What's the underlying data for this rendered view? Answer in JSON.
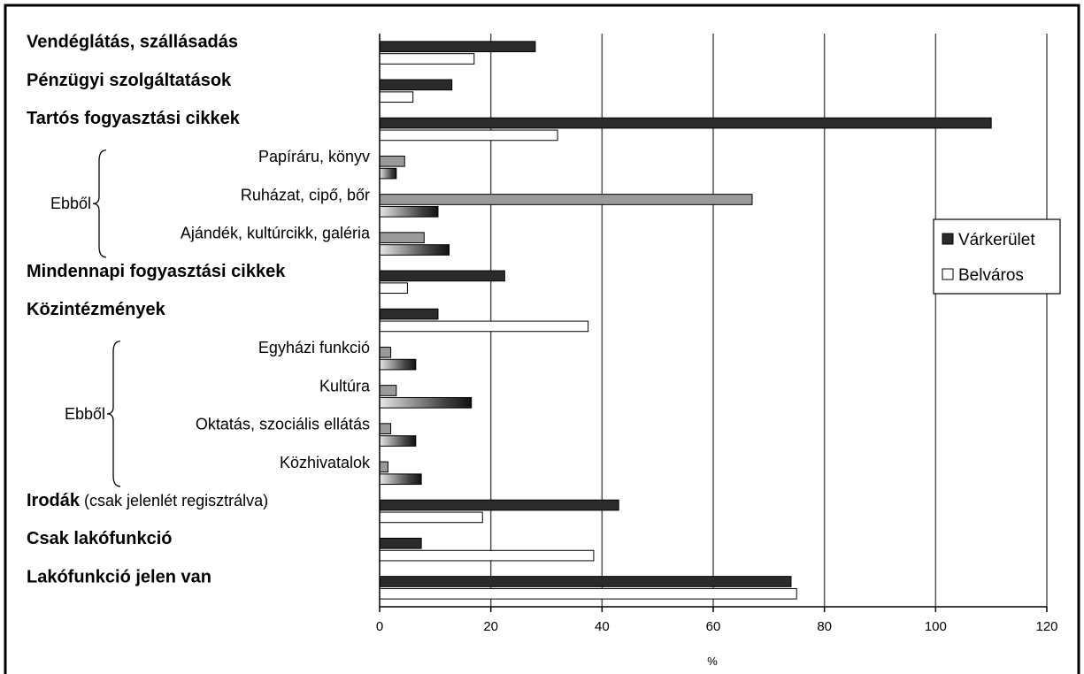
{
  "chart_data": {
    "type": "bar",
    "orientation": "horizontal",
    "xlabel": "%",
    "xlim": [
      0,
      120
    ],
    "xticks": [
      0,
      20,
      40,
      60,
      80,
      100,
      120
    ],
    "grid": "vertical",
    "legend_position": "right",
    "legend": [
      "Várkerület",
      "Belváros"
    ],
    "group_labels": [
      "Ebből",
      "Ebből"
    ],
    "categories": [
      {
        "label": "Vendéglátás, szállásadás",
        "style": "main",
        "varkerulet": 28,
        "belvaros": 17
      },
      {
        "label": "Pénzügyi szolgáltatások",
        "style": "main",
        "varkerulet": 13,
        "belvaros": 6
      },
      {
        "label": "Tartós fogyasztási cikkek",
        "style": "main",
        "varkerulet": 110,
        "belvaros": 32
      },
      {
        "label": "Papíráru, könyv",
        "style": "sub",
        "belvaros": 4.5,
        "varkerulet": 3
      },
      {
        "label": "Ruházat, cipő, bőr",
        "style": "sub",
        "belvaros": 67,
        "varkerulet": 10.5
      },
      {
        "label": "Ajándék, kultúrcikk, galéria",
        "style": "sub",
        "belvaros": 8,
        "varkerulet": 12.5
      },
      {
        "label": "Mindennapi fogyasztási cikkek",
        "style": "main",
        "varkerulet": 22.5,
        "belvaros": 5
      },
      {
        "label": "Közintézmények",
        "style": "main",
        "varkerulet": 10.5,
        "belvaros": 37.5
      },
      {
        "label": "Egyházi funkció",
        "style": "sub",
        "belvaros": 2,
        "varkerulet": 6.5
      },
      {
        "label": "Kultúra",
        "style": "sub",
        "belvaros": 3,
        "varkerulet": 16.5
      },
      {
        "label": "Oktatás, szociális ellátás",
        "style": "sub",
        "belvaros": 2,
        "varkerulet": 6.5
      },
      {
        "label": "Közhivatalok",
        "style": "sub",
        "belvaros": 1.5,
        "varkerulet": 7.5
      },
      {
        "label": "Irodák",
        "label_suffix": " (csak jelenlét regisztrálva)",
        "style": "main",
        "varkerulet": 43,
        "belvaros": 18.5
      },
      {
        "label": "Csak lakófunkció",
        "style": "main",
        "varkerulet": 7.5,
        "belvaros": 38.5
      },
      {
        "label": "Lakófunkció jelen van",
        "style": "main",
        "varkerulet": 74,
        "belvaros": 75
      }
    ],
    "colors": {
      "varkerulet": "#2b2b2b",
      "belvaros": "#ffffff",
      "sub_gray": "#9a9a9a",
      "grid": "#555555"
    }
  }
}
